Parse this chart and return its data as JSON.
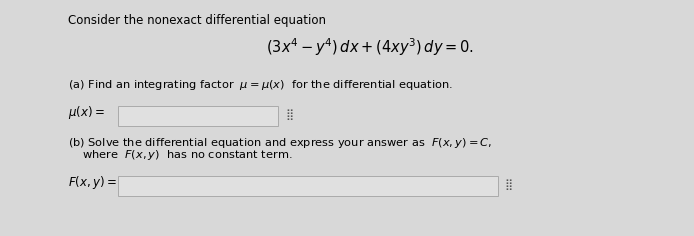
{
  "bg_color": "#d8d8d8",
  "title_text": "Consider the nonexact differential equation",
  "equation": "$(3x^4 - y^4)\\, dx + (4xy^3)\\, dy = 0.$",
  "part_a_label": "(a) Find an integrating factor  $\\mu = \\mu(x)$  for the differential equation.",
  "mu_label": "$\\mu(x) =$",
  "part_b_line1": "(b) Solve the differential equation and express your answer as  $F(x, y) = C,$",
  "part_b_line2": "where  $F(x, y)$  has no constant term.",
  "F_label": "$F(x, y) =$",
  "title_fontsize": 8.5,
  "eq_fontsize": 10.5,
  "body_fontsize": 8.2,
  "label_fontsize": 8.5
}
